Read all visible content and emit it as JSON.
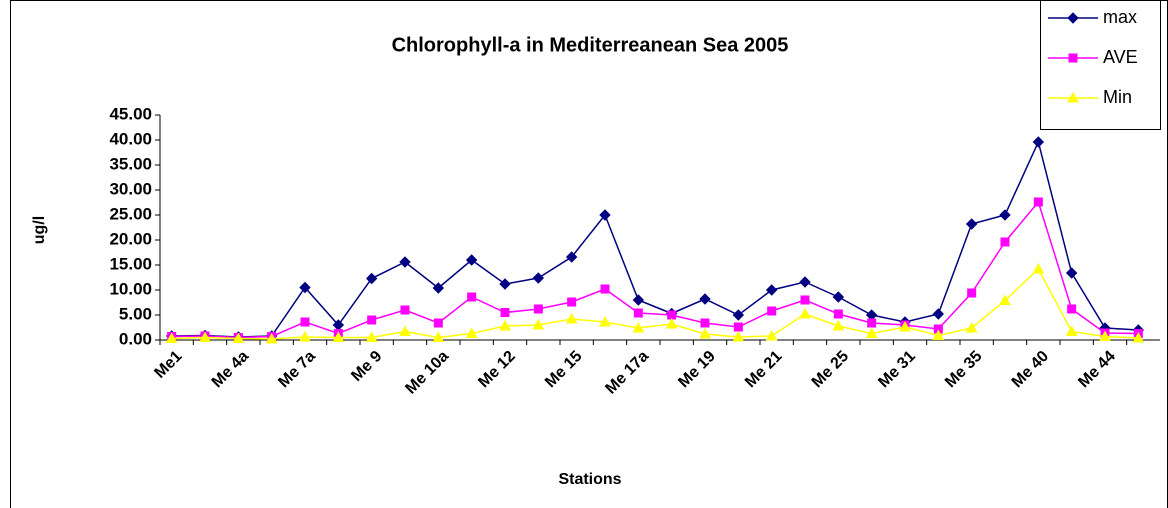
{
  "chart_data": {
    "type": "line",
    "title": "Chlorophyll-a in Mediterreanean Sea 2005",
    "x_label": "Stations",
    "y_label": "ug/l",
    "categories": [
      "Me1",
      null,
      "Me 4a",
      null,
      "Me 7a",
      null,
      "Me 9",
      null,
      "Me 10a",
      null,
      "Me 12",
      null,
      "Me 15",
      null,
      "Me 17a",
      null,
      "Me 19",
      null,
      "Me 21",
      null,
      "Me 25",
      null,
      "Me 31",
      null,
      "Me 35",
      null,
      "Me 40",
      null,
      "Me 44",
      null
    ],
    "series": [
      {
        "name": "max",
        "color": "#000080",
        "marker": "diamond",
        "values": [
          0.8,
          0.9,
          0.6,
          0.8,
          10.5,
          3.0,
          12.3,
          15.6,
          10.4,
          16.0,
          11.2,
          12.4,
          16.6,
          25.0,
          8.0,
          5.3,
          8.2,
          5.0,
          10.0,
          11.6,
          8.6,
          5.0,
          3.6,
          5.2,
          23.2,
          25.0,
          39.6,
          13.4,
          2.4,
          2.0
        ]
      },
      {
        "name": "AVE",
        "color": "#FF00FF",
        "marker": "square",
        "values": [
          0.7,
          0.8,
          0.5,
          0.7,
          3.6,
          1.3,
          4.0,
          6.0,
          3.4,
          8.6,
          5.5,
          6.2,
          7.6,
          10.2,
          5.4,
          5.0,
          3.4,
          2.6,
          5.8,
          8.0,
          5.2,
          3.4,
          3.0,
          2.2,
          9.4,
          19.6,
          27.6,
          6.2,
          1.4,
          1.3
        ]
      },
      {
        "name": "Min",
        "color": "#FFFF00",
        "marker": "triangle",
        "values": [
          0.3,
          0.5,
          0.3,
          0.2,
          0.6,
          0.5,
          0.5,
          1.7,
          0.5,
          1.3,
          2.8,
          3.0,
          4.2,
          3.6,
          2.4,
          3.2,
          1.2,
          0.6,
          0.8,
          5.2,
          2.8,
          1.3,
          2.6,
          0.9,
          2.4,
          7.9,
          14.2,
          1.7,
          0.7,
          0.4
        ]
      }
    ],
    "ylim": [
      0,
      45
    ],
    "yticks": [
      {
        "value": 0,
        "label": "0.00"
      },
      {
        "value": 5,
        "label": "5.00"
      },
      {
        "value": 10,
        "label": "10.00"
      },
      {
        "value": 15,
        "label": "15.00"
      },
      {
        "value": 20,
        "label": "20.00"
      },
      {
        "value": 25,
        "label": "25.00"
      },
      {
        "value": 30,
        "label": "30.00"
      },
      {
        "value": 35,
        "label": "35.00"
      },
      {
        "value": 40,
        "label": "40.00"
      },
      {
        "value": 45,
        "label": "45.00"
      }
    ],
    "legend": "top-right"
  }
}
